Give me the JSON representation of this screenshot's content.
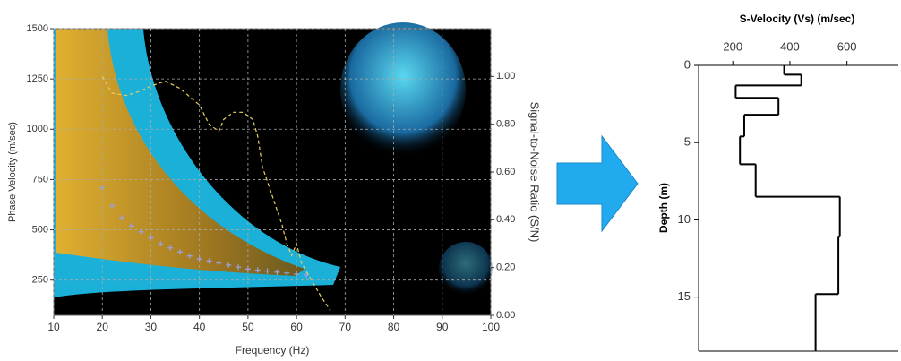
{
  "chart_data": [
    {
      "type": "dispersion",
      "xlabel": "Frequency (Hz)",
      "ylabel": "Phase Velocity (m/sec)",
      "y2label": "Signal-to-Noise Ratio (S/N)",
      "xlim": [
        10,
        100
      ],
      "xticks": [
        10,
        20,
        30,
        40,
        50,
        60,
        70,
        80,
        90,
        100
      ],
      "ylim": [
        75,
        1500
      ],
      "yticks": [
        250,
        500,
        750,
        1000,
        1250,
        1500
      ],
      "y2lim": [
        0,
        1.2
      ],
      "y2ticks": [
        {
          "value": 0,
          "label": "0.00"
        },
        {
          "value": 0.2,
          "label": "0.20"
        },
        {
          "value": 0.4,
          "label": "0.40"
        },
        {
          "value": 0.6,
          "label": "0.60"
        },
        {
          "value": 0.8,
          "label": "0.80"
        },
        {
          "value": 1,
          "label": "1.00"
        }
      ],
      "grid": true,
      "series": [
        {
          "kind": "markers",
          "color": "#9aa0e0",
          "x": [
            20,
            22,
            24,
            26,
            28,
            30,
            32,
            34,
            36,
            38,
            40,
            42,
            44,
            46,
            48,
            50,
            52,
            54,
            56,
            58,
            60,
            62
          ],
          "values": [
            710,
            620,
            560,
            520,
            490,
            460,
            430,
            410,
            390,
            370,
            355,
            345,
            335,
            325,
            315,
            305,
            300,
            295,
            290,
            285,
            280,
            275
          ]
        },
        {
          "kind": "dashed-line",
          "color": "#e8d060",
          "axis": "y2",
          "x": [
            20,
            22,
            25,
            28,
            30,
            33,
            36,
            40,
            42,
            44,
            45,
            47,
            49,
            51,
            52,
            53,
            55,
            57,
            58,
            59,
            60,
            61,
            63,
            65,
            67
          ],
          "values": [
            1.0,
            0.93,
            0.92,
            0.94,
            0.96,
            0.98,
            0.95,
            0.88,
            0.8,
            0.77,
            0.82,
            0.85,
            0.85,
            0.82,
            0.75,
            0.62,
            0.5,
            0.38,
            0.3,
            0.25,
            0.3,
            0.22,
            0.15,
            0.08,
            0.02
          ]
        }
      ]
    },
    {
      "type": "step",
      "title": "S-Velocity (Vs) (m/sec)",
      "ylabel": "Depth (m)",
      "xlim": [
        80,
        780
      ],
      "xticks": [
        200,
        400,
        600
      ],
      "ylim": [
        0,
        18.5
      ],
      "yticks": [
        0,
        5,
        10,
        15
      ],
      "color": "#000000",
      "depth": [
        0,
        0.6,
        1.3,
        2.1,
        3.2,
        4.6,
        6.4,
        8.5,
        11.1,
        14.8
      ],
      "values": [
        380,
        440,
        210,
        360,
        240,
        225,
        280,
        575,
        570,
        490
      ]
    }
  ]
}
